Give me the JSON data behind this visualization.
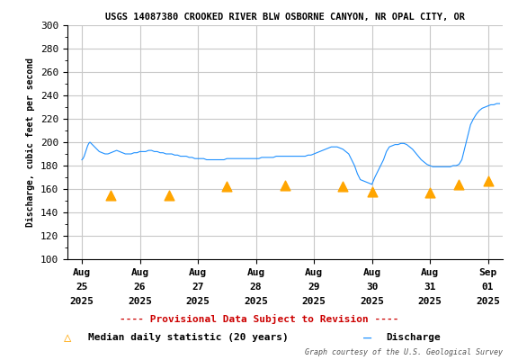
{
  "title": "USGS 14087380 CROOKED RIVER BLW OSBORNE CANYON, NR OPAL CITY, OR",
  "ylabel": "Discharge, cubic feet per second",
  "ylim": [
    100,
    300
  ],
  "yticks": [
    100,
    120,
    140,
    160,
    180,
    200,
    220,
    240,
    260,
    280,
    300
  ],
  "xlabel_lines": [
    [
      "Aug",
      "25",
      "2025"
    ],
    [
      "Aug",
      "26",
      "2025"
    ],
    [
      "Aug",
      "27",
      "2025"
    ],
    [
      "Aug",
      "28",
      "2025"
    ],
    [
      "Aug",
      "29",
      "2025"
    ],
    [
      "Aug",
      "30",
      "2025"
    ],
    [
      "Aug",
      "31",
      "2025"
    ],
    [
      "Sep",
      "01",
      "2025"
    ]
  ],
  "x_tick_positions": [
    0,
    1,
    2,
    3,
    4,
    5,
    6,
    7
  ],
  "xlim": [
    -0.25,
    7.25
  ],
  "discharge_color": "#1e90ff",
  "median_color": "#FFA500",
  "provisional_color": "#cc0000",
  "title_color": "#000000",
  "bg_color": "#ffffff",
  "grid_color": "#c8c8c8",
  "legend_text_provisional": "Provisional Data Subject to Revision",
  "legend_text_median": "Median daily statistic (20 years)",
  "legend_text_discharge": "Discharge",
  "courtesy_text": "Graph courtesy of the U.S. Geological Survey",
  "discharge_x": [
    0.0,
    0.02,
    0.04,
    0.06,
    0.08,
    0.1,
    0.12,
    0.14,
    0.16,
    0.18,
    0.2,
    0.22,
    0.24,
    0.26,
    0.28,
    0.3,
    0.35,
    0.4,
    0.45,
    0.5,
    0.55,
    0.6,
    0.65,
    0.7,
    0.75,
    0.8,
    0.85,
    0.9,
    0.95,
    1.0,
    1.05,
    1.1,
    1.15,
    1.2,
    1.25,
    1.3,
    1.35,
    1.4,
    1.45,
    1.5,
    1.55,
    1.6,
    1.65,
    1.7,
    1.75,
    1.8,
    1.85,
    1.9,
    1.95,
    2.0,
    2.05,
    2.1,
    2.15,
    2.2,
    2.25,
    2.3,
    2.35,
    2.4,
    2.45,
    2.5,
    2.55,
    2.6,
    2.65,
    2.7,
    2.75,
    2.8,
    2.85,
    2.9,
    2.95,
    3.0,
    3.05,
    3.1,
    3.15,
    3.2,
    3.25,
    3.3,
    3.35,
    3.4,
    3.45,
    3.5,
    3.55,
    3.6,
    3.65,
    3.7,
    3.75,
    3.8,
    3.85,
    3.9,
    3.95,
    4.0,
    4.05,
    4.1,
    4.15,
    4.2,
    4.25,
    4.3,
    4.35,
    4.4,
    4.45,
    4.5,
    4.55,
    4.6,
    4.65,
    4.7,
    4.75,
    4.8,
    4.85,
    4.9,
    4.95,
    5.0,
    5.05,
    5.1,
    5.15,
    5.2,
    5.25,
    5.3,
    5.35,
    5.4,
    5.45,
    5.5,
    5.55,
    5.6,
    5.65,
    5.7,
    5.75,
    5.8,
    5.85,
    5.9,
    5.95,
    6.0,
    6.05,
    6.1,
    6.15,
    6.2,
    6.25,
    6.3,
    6.35,
    6.4,
    6.45,
    6.5,
    6.55,
    6.6,
    6.65,
    6.7,
    6.75,
    6.8,
    6.85,
    6.9,
    6.95,
    7.0,
    7.05,
    7.1,
    7.15,
    7.2
  ],
  "discharge_y_raw": [
    185,
    186,
    188,
    191,
    194,
    197,
    199,
    200,
    199,
    198,
    197,
    196,
    195,
    194,
    193,
    192,
    191,
    190,
    190,
    191,
    192,
    193,
    192,
    191,
    190,
    190,
    190,
    191,
    191,
    192,
    192,
    192,
    193,
    193,
    192,
    192,
    191,
    191,
    190,
    190,
    190,
    189,
    189,
    188,
    188,
    188,
    187,
    187,
    186,
    186,
    186,
    186,
    185,
    185,
    185,
    185,
    185,
    185,
    185,
    186,
    186,
    186,
    186,
    186,
    186,
    186,
    186,
    186,
    186,
    186,
    186,
    187,
    187,
    187,
    187,
    187,
    188,
    188,
    188,
    188,
    188,
    188,
    188,
    188,
    188,
    188,
    188,
    189,
    189,
    190,
    191,
    192,
    193,
    194,
    195,
    196,
    196,
    196,
    195,
    194,
    192,
    190,
    185,
    180,
    173,
    168,
    167,
    166,
    165,
    164,
    170,
    175,
    180,
    185,
    192,
    196,
    197,
    198,
    198,
    199,
    199,
    198,
    196,
    194,
    191,
    188,
    185,
    183,
    181,
    180,
    179,
    179,
    179,
    179,
    179,
    179,
    179,
    180,
    180,
    181,
    185,
    195,
    205,
    215,
    220,
    224,
    227,
    229,
    230,
    231,
    232,
    232,
    233,
    233
  ],
  "median_x": [
    0.5,
    1.5,
    2.5,
    3.5,
    4.5,
    5.0,
    6.0,
    6.5,
    7.0
  ],
  "median_y": [
    155,
    155,
    162,
    163,
    162,
    158,
    157,
    164,
    167
  ]
}
